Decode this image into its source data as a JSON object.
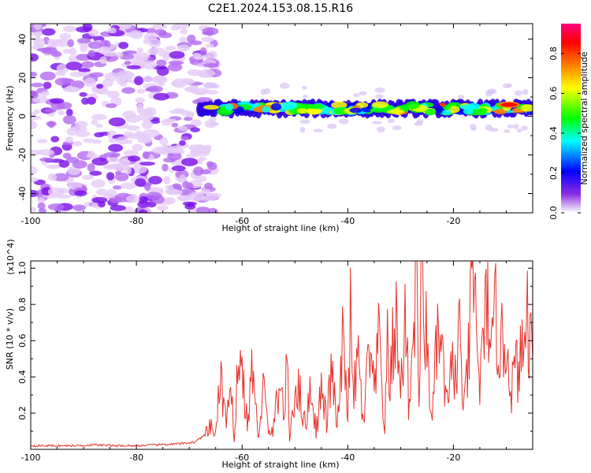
{
  "title": "C2E1.2024.153.08.15.R16",
  "chart_data": [
    {
      "type": "heatmap",
      "xlabel": "Height of straight line (km)",
      "ylabel": "Frequency (Hz)",
      "xlim": [
        -100,
        -5
      ],
      "ylim": [
        -50,
        48
      ],
      "xticks": [
        -100,
        -80,
        -60,
        -40,
        -20
      ],
      "yticks": [
        -40,
        -20,
        0,
        20,
        40
      ],
      "colorbar": {
        "label": "Normalized spectral amplitude",
        "range": [
          0,
          0.95
        ],
        "ticks": [
          0.0,
          0.2,
          0.4,
          0.6,
          0.8
        ],
        "colors": [
          "#ffffff",
          "#8a2be2",
          "#0000ff",
          "#00ffff",
          "#00ff00",
          "#ffff00",
          "#ff7f00",
          "#ff0000",
          "#ff0080"
        ]
      },
      "regions": [
        {
          "x_range": [
            -100,
            -67
          ],
          "description": "scattered noise",
          "freq_range": [
            -50,
            48
          ],
          "amplitude": 0.1
        },
        {
          "x_range": [
            -68,
            -5
          ],
          "description": "signal band",
          "center_freq": 4,
          "width_hz": 8,
          "amplitude": 0.5
        },
        {
          "x_range": [
            -11,
            -8
          ],
          "description": "peak",
          "center_freq": 6,
          "amplitude": 0.95
        }
      ]
    },
    {
      "type": "line",
      "xlabel": "Height of straight line (km)",
      "ylabel": "SNR (10 * v/v)",
      "y_multiplier": "(x10^4)",
      "xlim": [
        -100,
        -5
      ],
      "ylim": [
        0,
        1.04
      ],
      "xticks": [
        -100,
        -80,
        -60,
        -40,
        -20
      ],
      "yticks": [
        0.2,
        0.4,
        0.6,
        0.8,
        1.0
      ],
      "color": "#e8332c",
      "series": [
        {
          "x": [
            -100,
            -96,
            -92,
            -88,
            -84,
            -80,
            -76,
            -72,
            -69,
            -67,
            -66,
            -65,
            -64.5,
            -64,
            -63,
            -62,
            -61.5,
            -61,
            -60,
            -59,
            -58,
            -57,
            -56,
            -55,
            -54,
            -53,
            -52,
            -51.5,
            -51,
            -50,
            -49,
            -48,
            -47,
            -46,
            -45,
            -44,
            -43,
            -42,
            -41,
            -40,
            -39.5,
            -39,
            -38,
            -37,
            -36,
            -35,
            -34,
            -33,
            -32.5,
            -32,
            -31,
            -30,
            -29,
            -28.5,
            -28,
            -27,
            -26.5,
            -26,
            -25,
            -24,
            -23,
            -22,
            -21,
            -20,
            -19.5,
            -19,
            -18,
            -17,
            -16.5,
            -16,
            -15,
            -14,
            -13.5,
            -13,
            -12,
            -11,
            -10,
            -9,
            -8,
            -7,
            -6,
            -5
          ],
          "y": [
            0.02,
            0.02,
            0.02,
            0.025,
            0.02,
            0.02,
            0.025,
            0.03,
            0.04,
            0.08,
            0.12,
            0.09,
            0.25,
            0.38,
            0.15,
            0.28,
            0.07,
            0.4,
            0.46,
            0.12,
            0.48,
            0.05,
            0.36,
            0.08,
            0.12,
            0.38,
            0.2,
            0.45,
            0.06,
            0.35,
            0.3,
            0.12,
            0.36,
            0.1,
            0.33,
            0.15,
            0.45,
            0.1,
            0.55,
            0.25,
            0.7,
            0.28,
            0.5,
            0.12,
            0.55,
            0.3,
            0.62,
            0.08,
            0.58,
            0.35,
            0.75,
            0.3,
            0.8,
            0.25,
            0.42,
            1.03,
            0.3,
            0.98,
            0.55,
            0.15,
            0.65,
            0.45,
            0.2,
            0.58,
            0.3,
            0.7,
            0.2,
            0.55,
            0.92,
            0.85,
            0.35,
            0.68,
            1.02,
            0.4,
            0.75,
            0.55,
            0.6,
            0.35,
            0.45,
            0.5,
            0.75,
            0.5
          ]
        }
      ]
    }
  ]
}
